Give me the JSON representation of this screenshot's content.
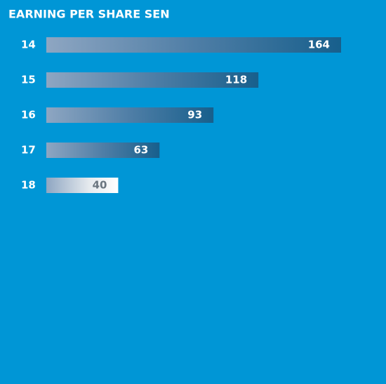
{
  "chart_data": {
    "type": "bar",
    "orientation": "horizontal",
    "title": "EARNING PER SHARE SEN",
    "categories": [
      "14",
      "15",
      "16",
      "17",
      "18"
    ],
    "values": [
      164,
      118,
      93,
      63,
      40
    ]
  }
}
